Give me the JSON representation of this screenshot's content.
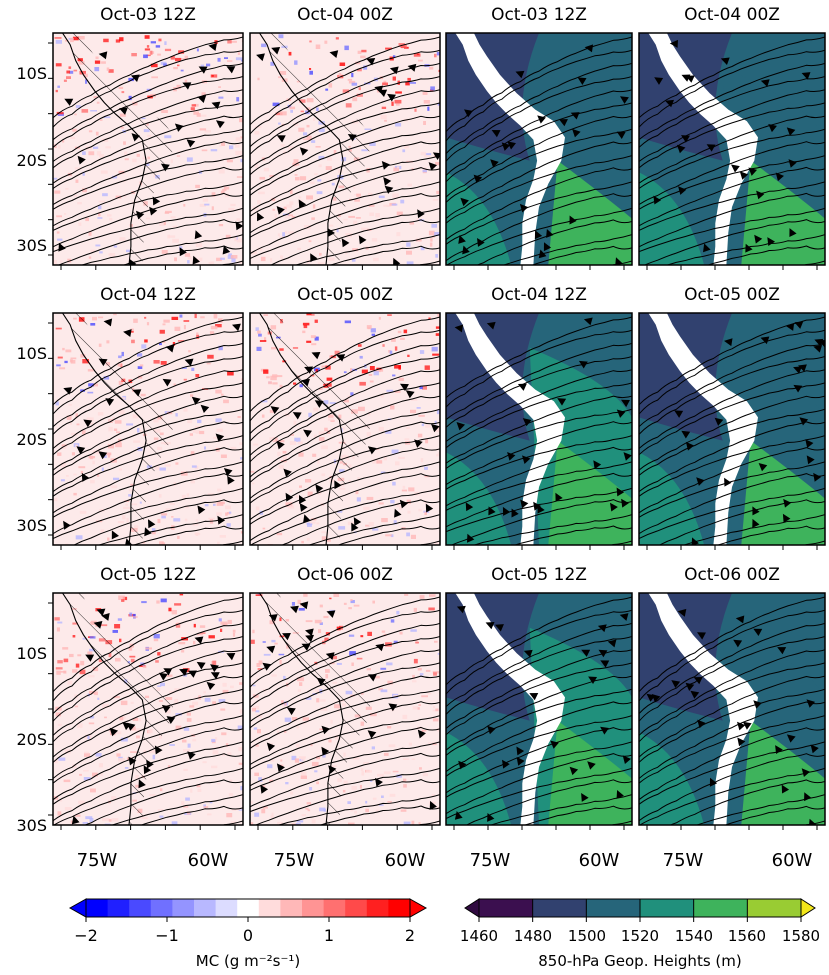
{
  "figure": {
    "y_ticks": [
      "10S",
      "20S",
      "30S"
    ],
    "x_ticks": [
      "75W",
      "60W"
    ],
    "panel_titles": [
      [
        "Oct-03 12Z",
        "Oct-04 00Z",
        "Oct-03 12Z",
        "Oct-04 00Z"
      ],
      [
        "Oct-04 12Z",
        "Oct-05 00Z",
        "Oct-04 12Z",
        "Oct-05 00Z"
      ],
      [
        "Oct-05 12Z",
        "Oct-06 00Z",
        "Oct-05 12Z",
        "Oct-06 00Z"
      ]
    ],
    "land_color": "#ffffff",
    "mc_colorbar": {
      "label": "MC (g m⁻²s⁻¹)",
      "ticks": [
        "−2",
        "−1",
        "0",
        "1",
        "2"
      ],
      "range": [
        -2,
        2
      ],
      "colors": [
        "#0000ff",
        "#2020ff",
        "#4a4aff",
        "#7070ff",
        "#9494ff",
        "#b8b8ff",
        "#dcdcff",
        "#ffffff",
        "#ffdcdc",
        "#ffb8b8",
        "#ff9494",
        "#ff7070",
        "#ff4a4a",
        "#ff2020",
        "#ff0000"
      ]
    },
    "gh_colorbar": {
      "label": "850-hPa Geop. Heights (m)",
      "ticks": [
        "1460",
        "1480",
        "1500",
        "1520",
        "1540",
        "1560",
        "1580"
      ],
      "range": [
        1460,
        1580
      ],
      "colors": [
        "#3b0f4f",
        "#31416f",
        "#26657a",
        "#20907c",
        "#3eb35c",
        "#99cc33",
        "#f2e61a"
      ]
    }
  },
  "chart_data": [
    {
      "type": "heatmap",
      "panel_group": "moisture convergence with streamlines",
      "rows": [
        "Oct-03 12Z/Oct-04 00Z",
        "Oct-04 12Z/Oct-05 00Z",
        "Oct-05 12Z/Oct-06 00Z"
      ],
      "panels": [
        "Oct-03 12Z",
        "Oct-04 00Z",
        "Oct-04 12Z",
        "Oct-05 00Z",
        "Oct-05 12Z",
        "Oct-06 00Z"
      ],
      "x_range_deg_lon": [
        -85,
        -53
      ],
      "y_range_deg_lat": [
        -33,
        -2
      ],
      "color_range": [
        -2,
        2
      ]
    },
    {
      "type": "heatmap",
      "panel_group": "850-hPa geopotential heights with streamlines",
      "panels": [
        "Oct-03 12Z",
        "Oct-04 00Z",
        "Oct-04 12Z",
        "Oct-05 00Z",
        "Oct-05 12Z",
        "Oct-06 00Z"
      ],
      "x_range_deg_lon": [
        -85,
        -53
      ],
      "y_range_deg_lat": [
        -33,
        -2
      ],
      "color_range": [
        1460,
        1580
      ],
      "dominant_level": [
        1500,
        1500,
        1520,
        1500,
        1520,
        1500
      ]
    }
  ]
}
